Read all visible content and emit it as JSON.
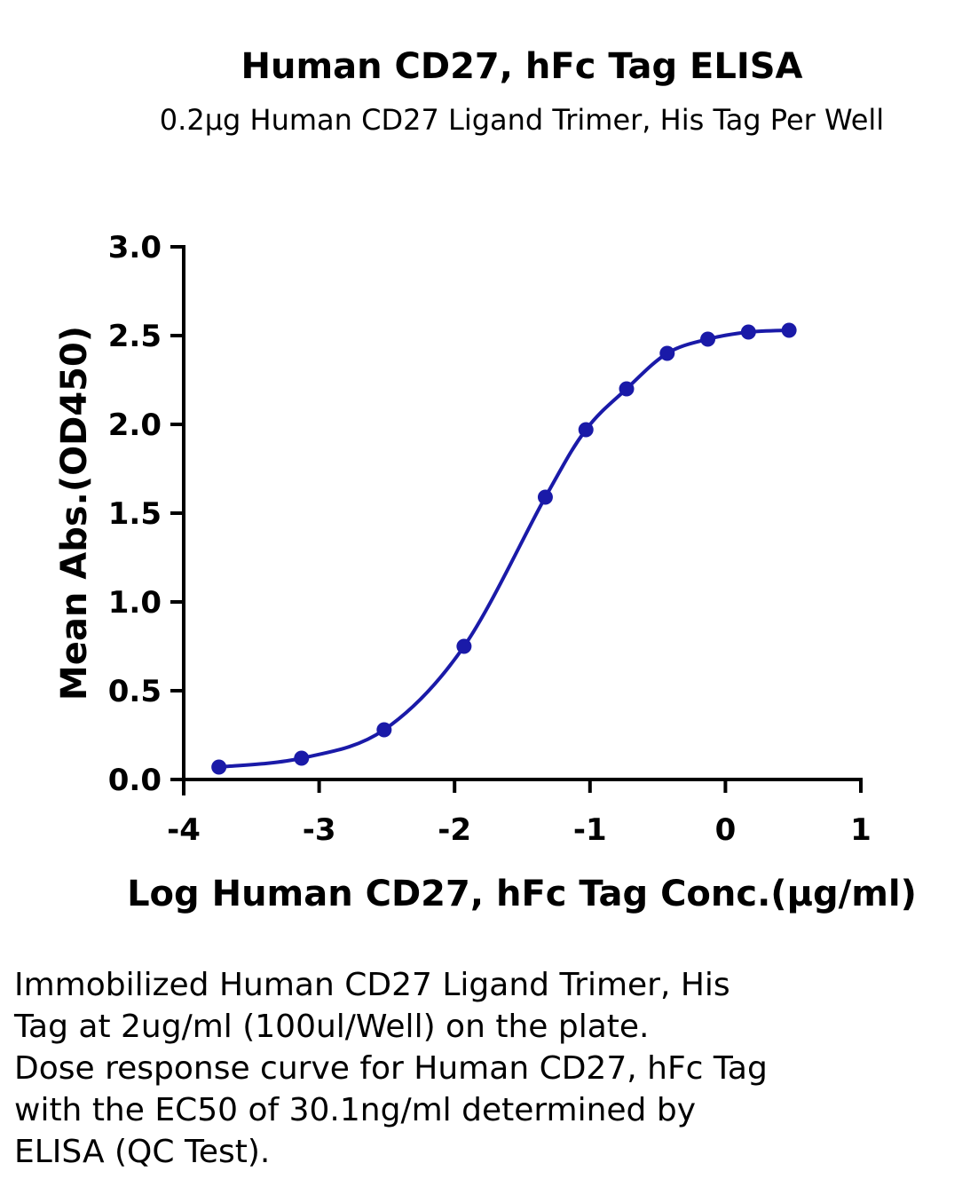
{
  "chart_data": {
    "type": "line",
    "title": "Human CD27, hFc Tag ELISA",
    "subtitle": "0.2μg Human CD27 Ligand Trimer, His Tag Per Well",
    "xlabel": "Log Human CD27, hFc Tag Conc.(μg/ml)",
    "ylabel": "Mean Abs.(OD450)",
    "xlim": [
      -4,
      1
    ],
    "ylim": [
      0,
      3
    ],
    "x_ticks": [
      "-4",
      "-3",
      "-2",
      "-1",
      "0",
      "1"
    ],
    "y_ticks": [
      "0.0",
      "0.5",
      "1.0",
      "1.5",
      "2.0",
      "2.5",
      "3.0"
    ],
    "grid": false,
    "series": [
      {
        "color": "#1a1aa8",
        "x": [
          -3.74,
          -3.13,
          -2.52,
          -1.93,
          -1.33,
          -1.03,
          -0.73,
          -0.43,
          -0.13,
          0.17,
          0.47
        ],
        "y": [
          0.07,
          0.12,
          0.28,
          0.75,
          1.59,
          1.97,
          2.2,
          2.4,
          2.48,
          2.52,
          2.53
        ]
      }
    ]
  },
  "caption": [
    "Immobilized Human CD27 Ligand Trimer, His",
    "Tag at 2ug/ml (100ul/Well) on the plate.",
    "Dose response curve for Human CD27, hFc Tag",
    "with the EC50 of 30.1ng/ml determined by",
    "ELISA (QC Test)."
  ]
}
